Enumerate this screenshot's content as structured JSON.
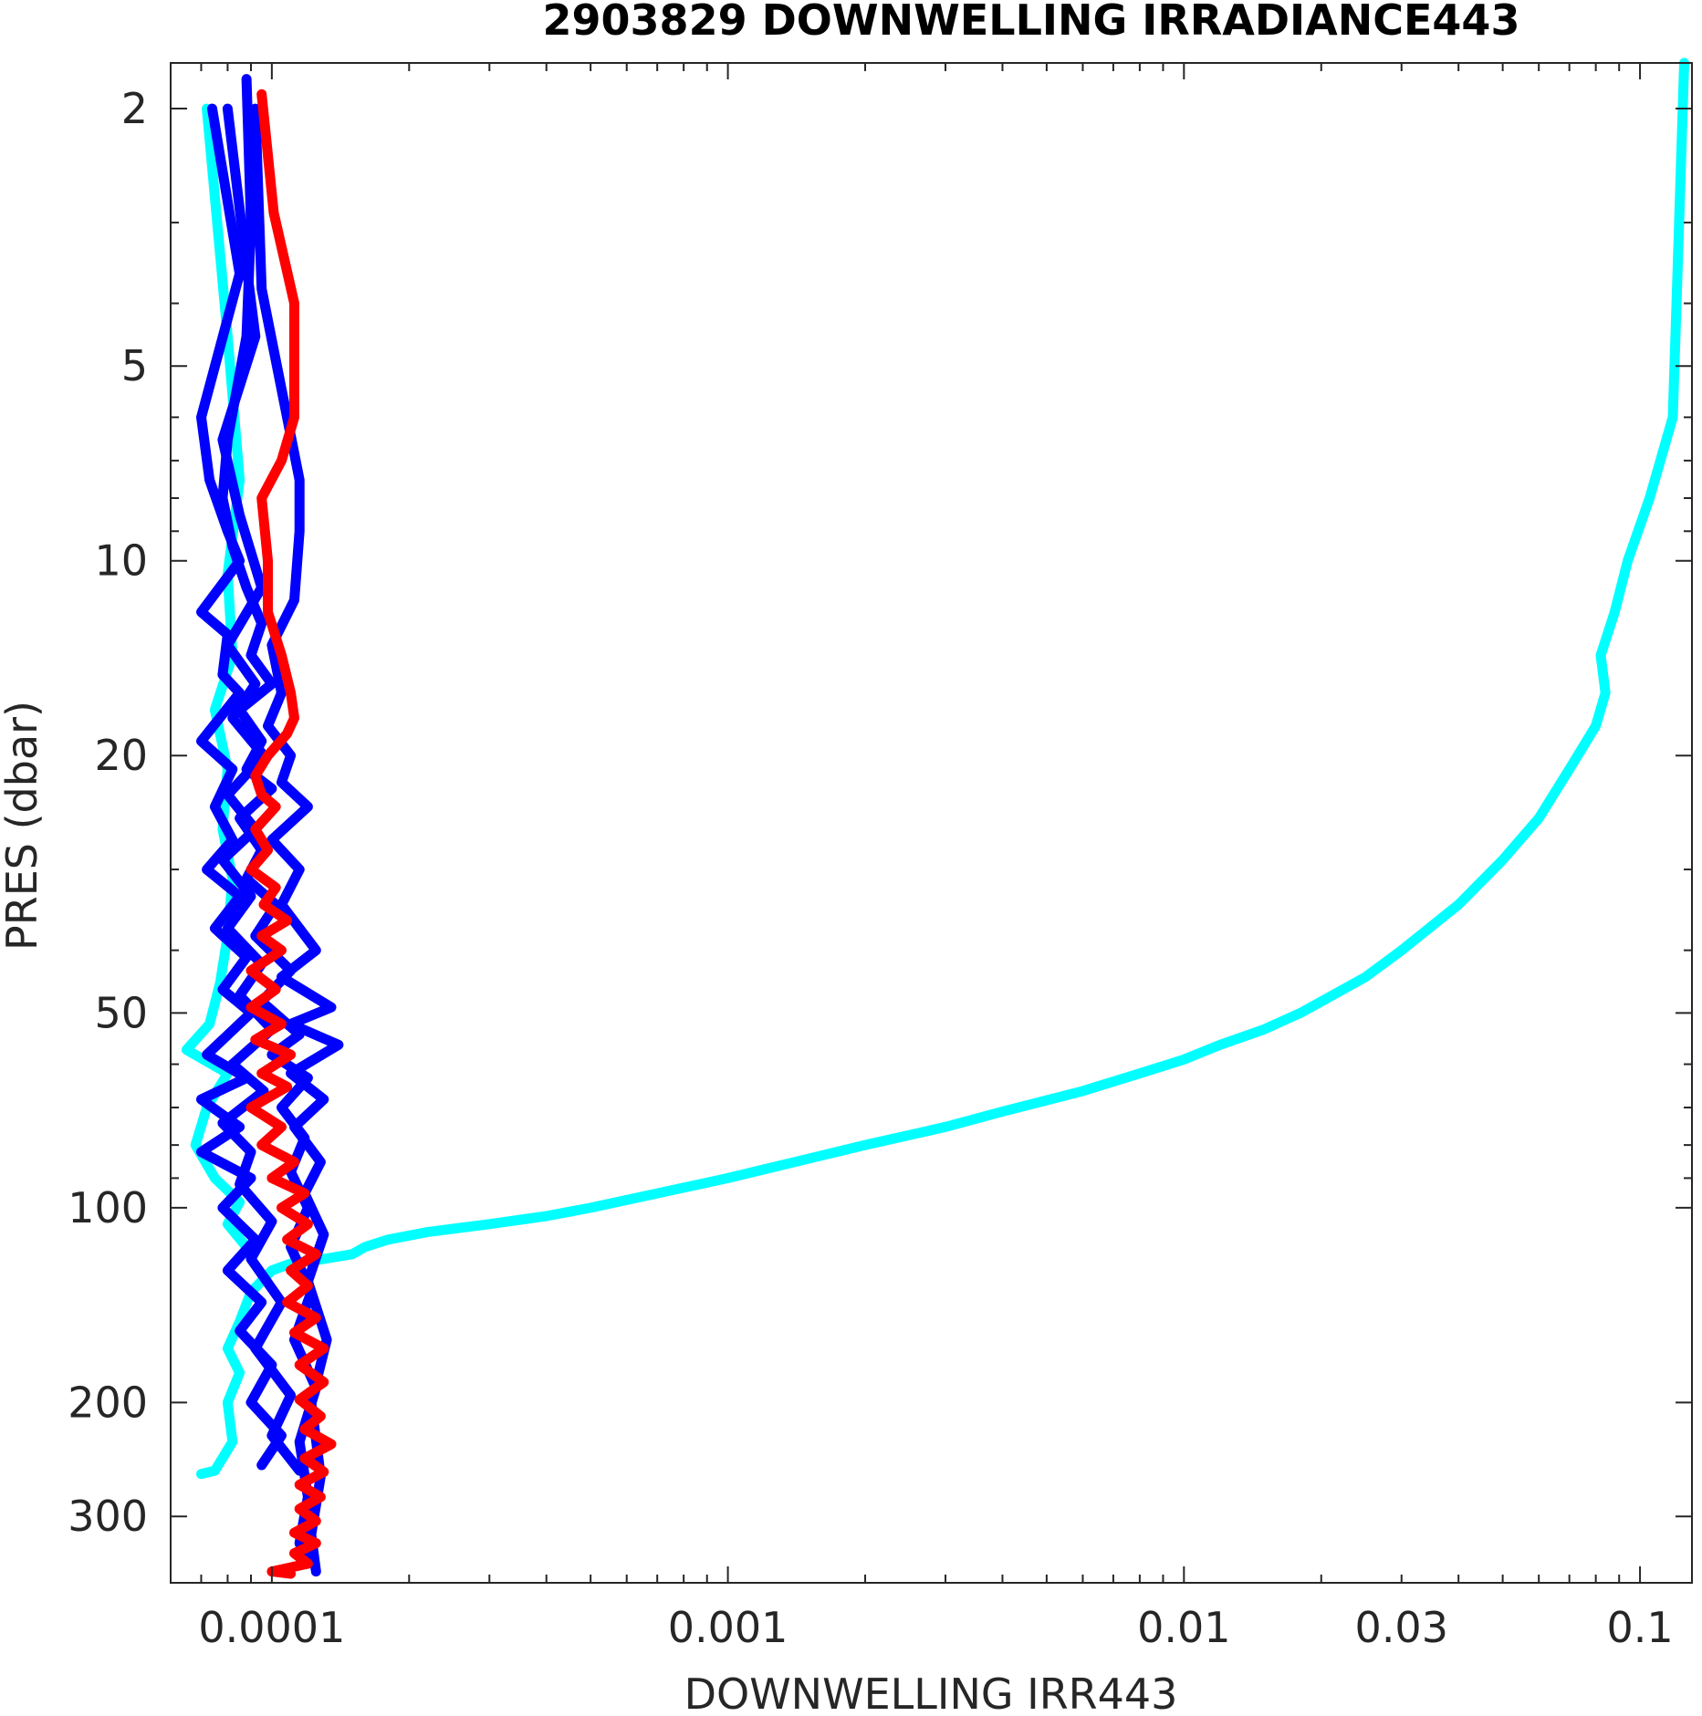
{
  "chart_data": {
    "type": "line",
    "title": "2903829  DOWNWELLING IRRADIANCE443",
    "xlabel": "DOWNWELLING IRR443",
    "ylabel": "PRES (dbar)",
    "xscale": "log",
    "yscale": "log",
    "y_reversed": true,
    "xlim": [
      6e-05,
      0.13
    ],
    "ylim": [
      1.7,
      380
    ],
    "grid": false,
    "xticks": [
      0.0001,
      0.001,
      0.01,
      0.03,
      0.1
    ],
    "xtick_labels": [
      "0.0001",
      "0.001",
      "0.01",
      "0.03",
      "0.1"
    ],
    "yticks": [
      2,
      5,
      10,
      20,
      50,
      100,
      200,
      300
    ],
    "ytick_labels": [
      "2",
      "5",
      "10",
      "20",
      "50",
      "100",
      "200",
      "300"
    ],
    "colors": {
      "cyan": "#00ffff",
      "blue": "#0000ff",
      "red": "#ff0000"
    },
    "series": [
      {
        "color": "cyan",
        "points": [
          [
            0.125,
            1.7
          ],
          [
            0.12,
            4.2
          ],
          [
            0.118,
            6.0
          ],
          [
            0.105,
            8.0
          ],
          [
            0.094,
            10.0
          ],
          [
            0.088,
            12.0
          ],
          [
            0.082,
            14.0
          ],
          [
            0.084,
            16.0
          ],
          [
            0.08,
            18.0
          ],
          [
            0.07,
            21.0
          ],
          [
            0.06,
            25.0
          ],
          [
            0.05,
            29.0
          ],
          [
            0.04,
            34.0
          ],
          [
            0.03,
            40.0
          ],
          [
            0.025,
            44.0
          ],
          [
            0.02,
            48.0
          ],
          [
            0.018,
            50.0
          ],
          [
            0.015,
            53.0
          ],
          [
            0.012,
            56.0
          ],
          [
            0.01,
            59.0
          ],
          [
            0.008,
            62.0
          ],
          [
            0.006,
            66.0
          ],
          [
            0.004,
            71.0
          ],
          [
            0.003,
            75.0
          ],
          [
            0.002,
            80.0
          ],
          [
            0.0014,
            85.0
          ],
          [
            0.001,
            90.0
          ],
          [
            0.0007,
            95.0
          ],
          [
            0.0005,
            100.0
          ],
          [
            0.0004,
            103.0
          ],
          [
            0.0003,
            106.0
          ],
          [
            0.00022,
            109.0
          ],
          [
            0.00018,
            112.0
          ],
          [
            0.00016,
            115.0
          ],
          [
            0.00015,
            118.0
          ],
          [
            0.00013,
            120.0
          ],
          [
            0.00011,
            122.0
          ],
          [
            0.0001,
            125.0
          ],
          [
            9e-05,
            135.0
          ],
          [
            8.5e-05,
            150.0
          ],
          [
            8e-05,
            165.0
          ],
          [
            8.5e-05,
            180.0
          ],
          [
            8e-05,
            200.0
          ],
          [
            8.2e-05,
            230.0
          ],
          [
            7.5e-05,
            255.0
          ],
          [
            7e-05,
            258.0
          ]
        ]
      },
      {
        "color": "cyan",
        "points": [
          [
            7.2e-05,
            2.0
          ],
          [
            8e-05,
            4.5
          ],
          [
            8.5e-05,
            7.5
          ],
          [
            8e-05,
            10.5
          ],
          [
            8.2e-05,
            14.0
          ],
          [
            7.5e-05,
            17.0
          ],
          [
            8e-05,
            21.0
          ],
          [
            7.8e-05,
            26.0
          ],
          [
            8.2e-05,
            31.0
          ],
          [
            8e-05,
            38.0
          ],
          [
            7.7e-05,
            45.0
          ],
          [
            7.3e-05,
            52.0
          ],
          [
            6.5e-05,
            57.0
          ],
          [
            8e-05,
            62.0
          ],
          [
            7.2e-05,
            70.0
          ],
          [
            6.8e-05,
            80.0
          ],
          [
            7.5e-05,
            90.0
          ],
          [
            8.5e-05,
            98.0
          ],
          [
            8e-05,
            106.0
          ],
          [
            8.8e-05,
            115.0
          ]
        ]
      },
      {
        "color": "blue",
        "points": [
          [
            7.4e-05,
            2.0
          ],
          [
            8.5e-05,
            3.6
          ],
          [
            7e-05,
            6.0
          ],
          [
            7.3e-05,
            7.5
          ],
          [
            8e-05,
            9.0
          ],
          [
            8.5e-05,
            10.0
          ],
          [
            7e-05,
            12.0
          ],
          [
            8e-05,
            13.0
          ],
          [
            7.8e-05,
            15.0
          ],
          [
            8.5e-05,
            16.0
          ],
          [
            7e-05,
            19.0
          ],
          [
            8.2e-05,
            21.0
          ],
          [
            7.5e-05,
            24.0
          ],
          [
            8.2e-05,
            27.0
          ],
          [
            7.2e-05,
            30.0
          ],
          [
            8.5e-05,
            33.0
          ],
          [
            7.5e-05,
            37.0
          ],
          [
            8.8e-05,
            41.0
          ],
          [
            7.8e-05,
            46.0
          ],
          [
            9e-05,
            50.0
          ],
          [
            7.2e-05,
            58.0
          ],
          [
            8.8e-05,
            63.0
          ],
          [
            7e-05,
            68.0
          ],
          [
            8.5e-05,
            75.0
          ],
          [
            7e-05,
            82.0
          ],
          [
            9e-05,
            90.0
          ],
          [
            7.8e-05,
            100.0
          ],
          [
            9.2e-05,
            112.0
          ],
          [
            8e-05,
            125.0
          ],
          [
            9.5e-05,
            140.0
          ],
          [
            8.5e-05,
            155.0
          ],
          [
            0.0001,
            175.0
          ],
          [
            9e-05,
            200.0
          ],
          [
            0.000105,
            225.0
          ],
          [
            9.5e-05,
            250.0
          ]
        ]
      },
      {
        "color": "blue",
        "points": [
          [
            8e-05,
            2.0
          ],
          [
            8.8e-05,
            3.5
          ],
          [
            9.2e-05,
            4.5
          ],
          [
            7.8e-05,
            6.5
          ],
          [
            8.5e-05,
            8.5
          ],
          [
            9.5e-05,
            11.0
          ],
          [
            8e-05,
            13.5
          ],
          [
            9.2e-05,
            15.5
          ],
          [
            8.2e-05,
            17.5
          ],
          [
            9.6e-05,
            20.0
          ],
          [
            8e-05,
            23.0
          ],
          [
            9.2e-05,
            26.0
          ],
          [
            7.8e-05,
            29.0
          ],
          [
            9e-05,
            33.0
          ],
          [
            8e-05,
            37.0
          ],
          [
            9.5e-05,
            42.0
          ],
          [
            8.5e-05,
            47.0
          ],
          [
            0.0001,
            53.0
          ],
          [
            8.2e-05,
            60.0
          ],
          [
            9.6e-05,
            66.0
          ],
          [
            7.8e-05,
            74.0
          ],
          [
            9e-05,
            82.0
          ],
          [
            8.5e-05,
            92.0
          ],
          [
            0.0001,
            105.0
          ],
          [
            9e-05,
            120.0
          ],
          [
            0.000105,
            140.0
          ],
          [
            9.2e-05,
            165.0
          ],
          [
            0.00011,
            195.0
          ],
          [
            0.0001,
            225.0
          ],
          [
            0.000115,
            255.0
          ]
        ]
      },
      {
        "color": "blue",
        "points": [
          [
            8.8e-05,
            1.8
          ],
          [
            9e-05,
            3.0
          ],
          [
            8.8e-05,
            4.5
          ],
          [
            8e-05,
            6.5
          ],
          [
            7.8e-05,
            8.0
          ],
          [
            8.2e-05,
            9.5
          ],
          [
            8.8e-05,
            11.0
          ],
          [
            9.5e-05,
            12.5
          ],
          [
            9e-05,
            14.0
          ],
          [
            0.0001,
            15.5
          ],
          [
            8.5e-05,
            17.0
          ],
          [
            9.5e-05,
            19.0
          ],
          [
            8.8e-05,
            21.0
          ],
          [
            0.0001,
            22.5
          ],
          [
            8.5e-05,
            25.0
          ],
          [
            9.5e-05,
            28.0
          ],
          [
            8.8e-05,
            31.0
          ],
          [
            0.000102,
            34.0
          ],
          [
            9.2e-05,
            38.0
          ],
          [
            0.00011,
            43.0
          ],
          [
            9.5e-05,
            48.0
          ],
          [
            0.000115,
            54.0
          ],
          [
            0.0001,
            58.0
          ],
          [
            0.00012,
            63.0
          ],
          [
            0.000105,
            70.0
          ],
          [
            0.000118,
            78.0
          ],
          [
            0.00011,
            88.0
          ],
          [
            0.00012,
            100.0
          ],
          [
            0.00011,
            115.0
          ],
          [
            0.000122,
            135.0
          ],
          [
            0.000112,
            160.0
          ],
          [
            0.000125,
            190.0
          ],
          [
            0.000115,
            230.0
          ],
          [
            0.00012,
            280.0
          ],
          [
            0.000115,
            330.0
          ],
          [
            0.00012,
            355.0
          ]
        ]
      },
      {
        "color": "blue",
        "points": [
          [
            9.2e-05,
            2.0
          ],
          [
            9.5e-05,
            3.8
          ],
          [
            0.000115,
            7.5
          ],
          [
            0.000115,
            9.0
          ],
          [
            0.000112,
            11.5
          ],
          [
            0.0001,
            13.5
          ],
          [
            0.000105,
            16.0
          ],
          [
            9.8e-05,
            18.0
          ],
          [
            0.00011,
            20.0
          ],
          [
            0.000105,
            22.0
          ],
          [
            0.00012,
            24.0
          ],
          [
            0.0001,
            27.0
          ],
          [
            0.000115,
            30.0
          ],
          [
            0.000105,
            34.0
          ],
          [
            0.000125,
            40.0
          ],
          [
            0.000105,
            44.0
          ],
          [
            0.000135,
            49.0
          ],
          [
            0.00011,
            52.0
          ],
          [
            0.00014,
            56.0
          ],
          [
            0.00011,
            62.0
          ],
          [
            0.00013,
            68.0
          ],
          [
            0.000112,
            75.0
          ],
          [
            0.000128,
            85.0
          ],
          [
            0.000118,
            95.0
          ],
          [
            0.00013,
            110.0
          ],
          [
            0.00012,
            130.0
          ],
          [
            0.000132,
            160.0
          ],
          [
            0.000122,
            200.0
          ],
          [
            0.000128,
            260.0
          ],
          [
            0.000122,
            320.0
          ],
          [
            0.000125,
            365.0
          ]
        ]
      },
      {
        "color": "red",
        "points": [
          [
            9.5e-05,
            1.9
          ],
          [
            0.000101,
            2.9
          ],
          [
            0.000112,
            4.0
          ],
          [
            0.000112,
            6.0
          ],
          [
            0.000105,
            7.0
          ],
          [
            9.5e-05,
            8.0
          ],
          [
            9.8e-05,
            10.0
          ],
          [
            9.8e-05,
            12.0
          ],
          [
            0.000105,
            14.0
          ],
          [
            0.00011,
            16.0
          ],
          [
            0.000112,
            17.5
          ],
          [
            0.000108,
            18.5
          ],
          [
            9.8e-05,
            20.0
          ],
          [
            9.2e-05,
            21.5
          ],
          [
            9.5e-05,
            23.0
          ],
          [
            0.000102,
            24.0
          ],
          [
            9.2e-05,
            26.0
          ],
          [
            9.8e-05,
            28.0
          ],
          [
            9e-05,
            30.0
          ],
          [
            0.000102,
            32.0
          ],
          [
            9.6e-05,
            34.0
          ],
          [
            0.000108,
            36.0
          ],
          [
            9.5e-05,
            38.0
          ],
          [
            0.000105,
            40.0
          ],
          [
            9e-05,
            43.0
          ],
          [
            0.000102,
            46.0
          ],
          [
            9e-05,
            49.0
          ],
          [
            0.000105,
            52.0
          ],
          [
            9.2e-05,
            55.0
          ],
          [
            0.00011,
            58.0
          ],
          [
            9.5e-05,
            62.0
          ],
          [
            0.000108,
            65.0
          ],
          [
            9e-05,
            70.0
          ],
          [
            0.000105,
            75.0
          ],
          [
            9.5e-05,
            80.0
          ],
          [
            0.000112,
            85.0
          ],
          [
            0.0001,
            90.0
          ],
          [
            0.000118,
            95.0
          ],
          [
            0.000105,
            100.0
          ],
          [
            0.00012,
            106.0
          ],
          [
            0.000108,
            112.0
          ],
          [
            0.000125,
            118.0
          ],
          [
            0.00011,
            125.0
          ],
          [
            0.00012,
            132.0
          ],
          [
            0.000108,
            140.0
          ],
          [
            0.000125,
            148.0
          ],
          [
            0.000112,
            156.0
          ],
          [
            0.00013,
            165.0
          ],
          [
            0.000115,
            175.0
          ],
          [
            0.00013,
            186.0
          ],
          [
            0.000115,
            198.0
          ],
          [
            0.000128,
            210.0
          ],
          [
            0.000118,
            220.0
          ],
          [
            0.000135,
            232.0
          ],
          [
            0.000118,
            244.0
          ],
          [
            0.00013,
            256.0
          ],
          [
            0.000115,
            268.0
          ],
          [
            0.000128,
            280.0
          ],
          [
            0.000115,
            292.0
          ],
          [
            0.000125,
            305.0
          ],
          [
            0.000112,
            318.0
          ],
          [
            0.000125,
            330.0
          ],
          [
            0.000112,
            342.0
          ],
          [
            0.00012,
            355.0
          ],
          [
            0.0001,
            365.0
          ],
          [
            0.00011,
            368.0
          ]
        ]
      }
    ]
  }
}
